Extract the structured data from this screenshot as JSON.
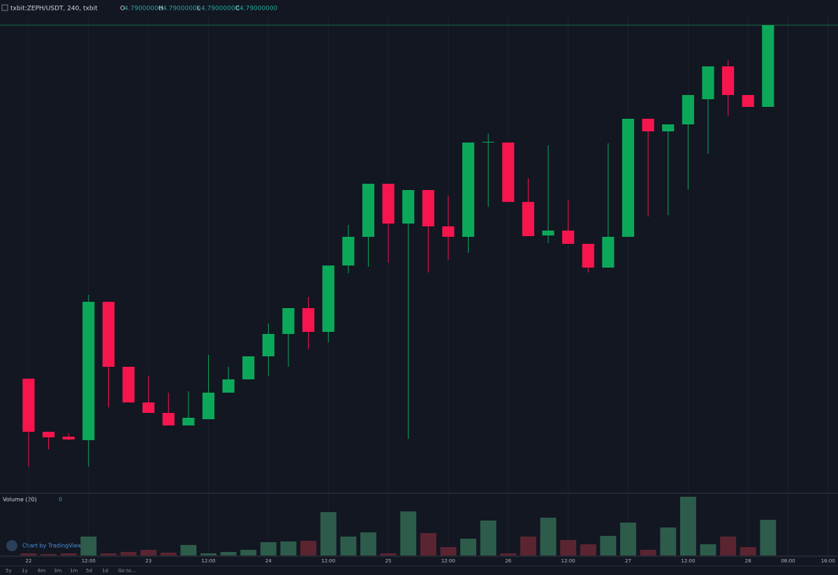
{
  "header": {
    "symbol": "txbit:ZEPH/USDT, 240, txbit",
    "ohlc": [
      {
        "label": "O",
        "value": "4.79000000"
      },
      {
        "label": "H",
        "value": "4.79000000"
      },
      {
        "label": "L",
        "value": "4.79000000"
      },
      {
        "label": "C",
        "value": "4.79000000"
      }
    ]
  },
  "chart_data": {
    "type": "candlestick",
    "up_color": "#0ca85a",
    "down_color": "#f7154d",
    "open": [
      4.284,
      4.208,
      4.201,
      4.196,
      4.394,
      4.301,
      4.25,
      4.235,
      4.217,
      4.226,
      4.264,
      4.283,
      4.316,
      4.348,
      4.385,
      4.351,
      4.446,
      4.487,
      4.563,
      4.506,
      4.554,
      4.502,
      4.487,
      4.622,
      4.622,
      4.537,
      4.489,
      4.496,
      4.477,
      4.443,
      4.487,
      4.656,
      4.638,
      4.648,
      4.684,
      4.731,
      4.69,
      4.673
    ],
    "high": [
      4.284,
      4.208,
      4.206,
      4.404,
      4.394,
      4.301,
      4.288,
      4.264,
      4.266,
      4.318,
      4.301,
      4.316,
      4.363,
      4.385,
      4.401,
      4.446,
      4.504,
      4.563,
      4.563,
      4.554,
      4.554,
      4.546,
      4.622,
      4.635,
      4.622,
      4.571,
      4.618,
      4.54,
      4.477,
      4.621,
      4.656,
      4.656,
      4.648,
      4.69,
      4.731,
      4.74,
      4.69,
      4.79
    ],
    "low": [
      4.158,
      4.183,
      4.196,
      4.158,
      4.243,
      4.25,
      4.235,
      4.217,
      4.217,
      4.226,
      4.264,
      4.283,
      4.288,
      4.301,
      4.326,
      4.336,
      4.435,
      4.444,
      4.45,
      4.198,
      4.436,
      4.454,
      4.464,
      4.53,
      4.537,
      4.488,
      4.478,
      4.477,
      4.436,
      4.443,
      4.487,
      4.516,
      4.518,
      4.555,
      4.606,
      4.66,
      4.673,
      4.673
    ],
    "close": [
      4.208,
      4.2,
      4.197,
      4.394,
      4.301,
      4.25,
      4.235,
      4.217,
      4.228,
      4.264,
      4.283,
      4.316,
      4.348,
      4.385,
      4.351,
      4.446,
      4.487,
      4.563,
      4.506,
      4.554,
      4.502,
      4.487,
      4.622,
      4.623,
      4.537,
      4.488,
      4.496,
      4.477,
      4.443,
      4.487,
      4.656,
      4.638,
      4.648,
      4.69,
      4.731,
      4.69,
      4.673,
      4.79
    ],
    "last_price": 4.79,
    "ylim": [
      4.121,
      4.804
    ],
    "xlim": [
      -1.43,
      40.5
    ],
    "xticks": [
      {
        "value": 0,
        "label": "22"
      },
      {
        "value": 3,
        "label": "12:00"
      },
      {
        "value": 6,
        "label": "23"
      },
      {
        "value": 9,
        "label": "12:00"
      },
      {
        "value": 12,
        "label": "24"
      },
      {
        "value": 15,
        "label": "12:00"
      },
      {
        "value": 18,
        "label": "25"
      },
      {
        "value": 21,
        "label": "12:00"
      },
      {
        "value": 24,
        "label": "26"
      },
      {
        "value": 27,
        "label": "12:00"
      },
      {
        "value": 30,
        "label": "27"
      },
      {
        "value": 33,
        "label": "12:00"
      },
      {
        "value": 36,
        "label": "28"
      },
      {
        "value": 38,
        "label": "08:00"
      },
      {
        "value": 40,
        "label": "16:00"
      }
    ],
    "volume": {
      "title": "Volume (20)",
      "last": "0",
      "up_color": "#2d5c4b",
      "down_color": "#5a2531",
      "ylim": [
        0,
        88
      ],
      "values": [
        3,
        2,
        3,
        27,
        3,
        5,
        8,
        4,
        15,
        3,
        5,
        8,
        19,
        20,
        21,
        62,
        27,
        33,
        3,
        63,
        32,
        12,
        24,
        50,
        3,
        27,
        54,
        22,
        16,
        28,
        47,
        8,
        40,
        84,
        16,
        27,
        12,
        51
      ]
    }
  },
  "footer": {
    "branding": "Chart by TradingView",
    "ranges": [
      "5y",
      "1y",
      "6m",
      "3m",
      "1m",
      "5d",
      "1d",
      "Go to..."
    ]
  }
}
